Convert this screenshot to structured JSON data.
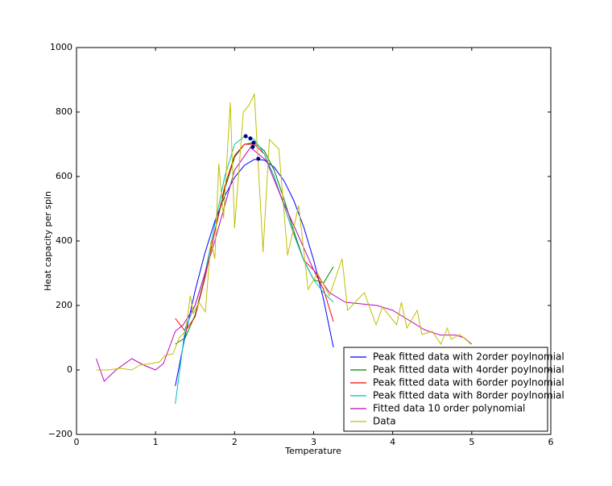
{
  "chart_data": {
    "type": "line",
    "xlabel": "Temperature",
    "ylabel": "Heat capacity per spin",
    "xlim": [
      0,
      6
    ],
    "ylim": [
      -200,
      1000
    ],
    "xticks": [
      0,
      1,
      2,
      3,
      4,
      5,
      6
    ],
    "yticks": [
      {
        "value": -200,
        "label": "−200"
      },
      0,
      200,
      400,
      600,
      800,
      1000
    ],
    "legend": "lower right",
    "series": [
      {
        "name": "Peak fitted data with 2order poylnomial",
        "color": "#0000ff",
        "x": [
          1.25,
          1.375,
          1.5,
          1.625,
          1.75,
          1.875,
          2.0,
          2.125,
          2.25,
          2.375,
          2.5,
          2.625,
          2.75,
          2.875,
          3.0,
          3.125,
          3.25
        ],
        "values": [
          -50,
          107,
          245,
          363,
          461,
          539,
          597,
          635,
          653,
          651,
          629,
          587,
          525,
          443,
          341,
          219,
          70
        ]
      },
      {
        "name": "Peak fitted data with 4order poylnomial",
        "color": "#008000",
        "x": [
          1.25,
          1.375,
          1.5,
          1.625,
          1.75,
          1.875,
          2.0,
          2.125,
          2.25,
          2.375,
          2.5,
          2.625,
          2.75,
          2.875,
          3.0,
          3.125,
          3.25
        ],
        "values": [
          80,
          100,
          170,
          290,
          430,
          560,
          660,
          700,
          705,
          680,
          620,
          530,
          430,
          340,
          280,
          270,
          320
        ]
      },
      {
        "name": "Peak fitted data with 6order poylnomial",
        "color": "#ff0000",
        "x": [
          1.25,
          1.375,
          1.5,
          1.625,
          1.75,
          1.875,
          2.0,
          2.125,
          2.25,
          2.375,
          2.5,
          2.625,
          2.75,
          2.875,
          3.0,
          3.125,
          3.25
        ],
        "values": [
          160,
          120,
          165,
          285,
          430,
          570,
          665,
          700,
          700,
          670,
          600,
          510,
          420,
          340,
          310,
          250,
          150
        ]
      },
      {
        "name": "Peak fitted data with 8order poylnomial",
        "color": "#00bfbf",
        "x": [
          1.25,
          1.375,
          1.5,
          1.625,
          1.75,
          1.875,
          2.0,
          2.125,
          2.25,
          2.375,
          2.5,
          2.625,
          2.75,
          2.875,
          3.0,
          3.125,
          3.25
        ],
        "values": [
          -105,
          130,
          200,
          300,
          450,
          600,
          700,
          725,
          715,
          670,
          600,
          510,
          420,
          340,
          280,
          240,
          210
        ]
      },
      {
        "name": "Fitted data 10 order polynomial",
        "color": "#bf00bf",
        "x": [
          0.25,
          0.35,
          0.5,
          0.7,
          0.85,
          1.0,
          1.1,
          1.25,
          1.35,
          1.5,
          1.75,
          2.0,
          2.2,
          2.4,
          2.6,
          2.8,
          3.0,
          3.2,
          3.4,
          3.6,
          3.8,
          4.0,
          4.2,
          4.4,
          4.6,
          4.8,
          4.9,
          5.0
        ],
        "values": [
          35,
          -35,
          0,
          35,
          15,
          0,
          20,
          120,
          140,
          200,
          400,
          620,
          690,
          650,
          530,
          420,
          310,
          240,
          210,
          205,
          200,
          185,
          155,
          125,
          108,
          108,
          100,
          80
        ]
      },
      {
        "name": "Data",
        "color": "#bfbf00",
        "x": [
          0.25,
          0.4,
          0.55,
          0.7,
          0.8,
          0.95,
          1.05,
          1.12,
          1.22,
          1.3,
          1.38,
          1.44,
          1.48,
          1.55,
          1.63,
          1.7,
          1.75,
          1.8,
          1.86,
          1.945,
          2.0,
          2.11,
          2.18,
          2.25,
          2.36,
          2.44,
          2.56,
          2.67,
          2.81,
          2.93,
          3.05,
          3.2,
          3.36,
          3.43,
          3.64,
          3.79,
          3.87,
          4.05,
          4.11,
          4.18,
          4.31,
          4.37,
          4.5,
          4.61,
          4.69,
          4.74,
          4.85,
          4.99
        ],
        "values": [
          0,
          0,
          5,
          0,
          15,
          20,
          25,
          45,
          50,
          100,
          120,
          230,
          175,
          210,
          180,
          400,
          345,
          640,
          470,
          830,
          440,
          800,
          820,
          855,
          365,
          715,
          685,
          355,
          510,
          250,
          300,
          230,
          345,
          185,
          240,
          140,
          195,
          140,
          210,
          130,
          185,
          110,
          120,
          80,
          130,
          95,
          110,
          80
        ]
      }
    ],
    "peaks": {
      "color": "#000080",
      "x": [
        2.14,
        2.2,
        2.24,
        2.23,
        2.3
      ],
      "values": [
        725,
        718,
        705,
        692,
        655
      ]
    }
  }
}
